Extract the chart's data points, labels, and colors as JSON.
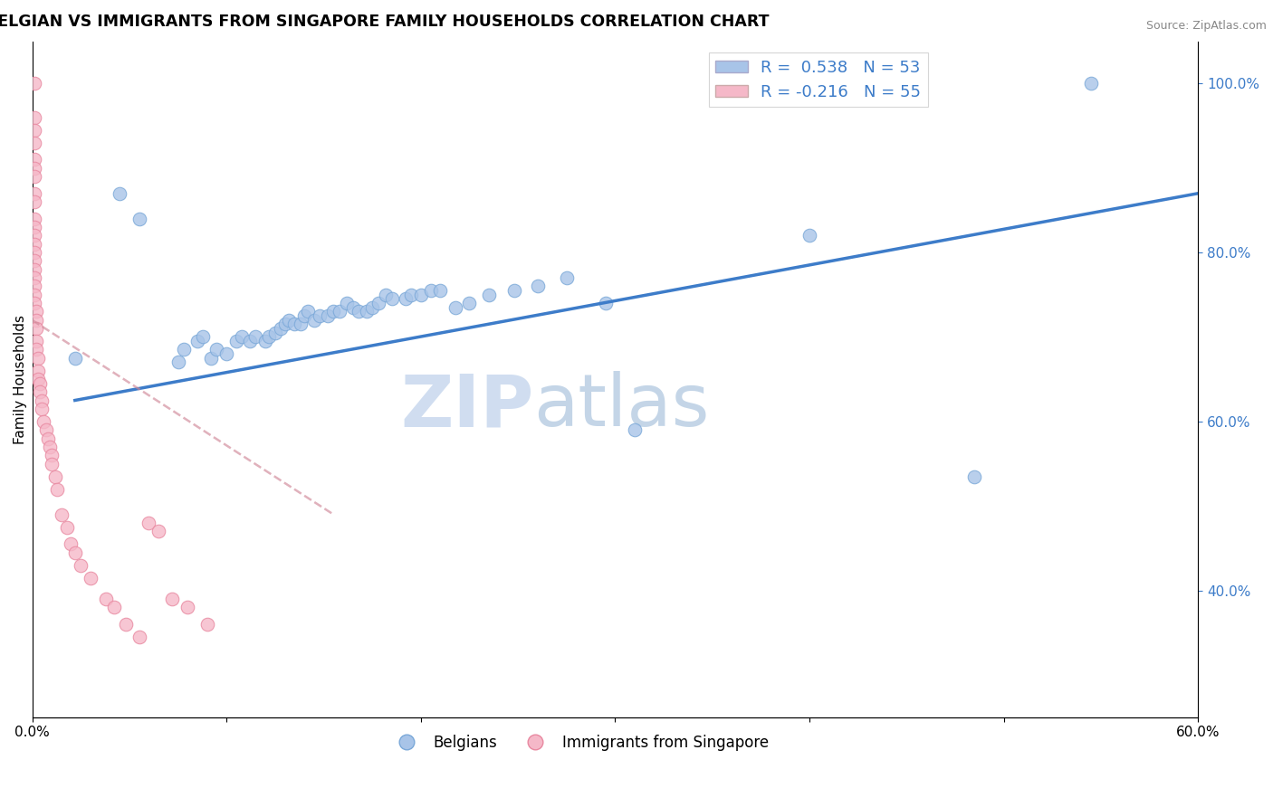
{
  "title": "BELGIAN VS IMMIGRANTS FROM SINGAPORE FAMILY HOUSEHOLDS CORRELATION CHART",
  "source": "Source: ZipAtlas.com",
  "ylabel": "Family Households",
  "xlim": [
    0.0,
    0.6
  ],
  "ylim": [
    0.25,
    1.05
  ],
  "xticks": [
    0.0,
    0.1,
    0.2,
    0.3,
    0.4,
    0.5,
    0.6
  ],
  "xticklabels": [
    "0.0%",
    "",
    "",
    "",
    "",
    "",
    "60.0%"
  ],
  "yticks_right": [
    0.4,
    0.6,
    0.8,
    1.0
  ],
  "yticklabels_right": [
    "40.0%",
    "60.0%",
    "80.0%",
    "100.0%"
  ],
  "blue_color": "#a8c4e8",
  "blue_edge": "#7aa8d8",
  "pink_color": "#f5b8c8",
  "pink_edge": "#e888a0",
  "trend_blue": "#3d7cc9",
  "trend_pink": "#d08898",
  "R_blue": 0.538,
  "N_blue": 53,
  "R_pink": -0.216,
  "N_pink": 55,
  "legend_label_blue": "Belgians",
  "legend_label_pink": "Immigrants from Singapore",
  "watermark": "ZIPatlas",
  "background_color": "#ffffff",
  "grid_color": "#cccccc",
  "title_fontsize": 12.5,
  "axis_fontsize": 11,
  "blue_scatter_x": [
    0.022,
    0.045,
    0.055,
    0.075,
    0.078,
    0.085,
    0.088,
    0.092,
    0.095,
    0.1,
    0.105,
    0.108,
    0.112,
    0.115,
    0.12,
    0.122,
    0.125,
    0.128,
    0.13,
    0.132,
    0.135,
    0.138,
    0.14,
    0.142,
    0.145,
    0.148,
    0.152,
    0.155,
    0.158,
    0.162,
    0.165,
    0.168,
    0.172,
    0.175,
    0.178,
    0.182,
    0.185,
    0.192,
    0.195,
    0.2,
    0.205,
    0.21,
    0.218,
    0.225,
    0.235,
    0.248,
    0.26,
    0.275,
    0.295,
    0.31,
    0.4,
    0.485,
    0.545
  ],
  "blue_scatter_y": [
    0.675,
    0.87,
    0.84,
    0.67,
    0.685,
    0.695,
    0.7,
    0.675,
    0.685,
    0.68,
    0.695,
    0.7,
    0.695,
    0.7,
    0.695,
    0.7,
    0.705,
    0.71,
    0.715,
    0.72,
    0.715,
    0.715,
    0.725,
    0.73,
    0.72,
    0.725,
    0.725,
    0.73,
    0.73,
    0.74,
    0.735,
    0.73,
    0.73,
    0.735,
    0.74,
    0.75,
    0.745,
    0.745,
    0.75,
    0.75,
    0.755,
    0.755,
    0.735,
    0.74,
    0.75,
    0.755,
    0.76,
    0.77,
    0.74,
    0.59,
    0.82,
    0.535,
    1.0
  ],
  "pink_scatter_x": [
    0.001,
    0.001,
    0.001,
    0.001,
    0.001,
    0.001,
    0.001,
    0.001,
    0.001,
    0.001,
    0.001,
    0.001,
    0.001,
    0.001,
    0.001,
    0.001,
    0.001,
    0.001,
    0.001,
    0.001,
    0.002,
    0.002,
    0.002,
    0.002,
    0.002,
    0.003,
    0.003,
    0.003,
    0.004,
    0.004,
    0.005,
    0.005,
    0.006,
    0.007,
    0.008,
    0.009,
    0.01,
    0.01,
    0.012,
    0.013,
    0.015,
    0.018,
    0.02,
    0.022,
    0.025,
    0.03,
    0.038,
    0.042,
    0.048,
    0.055,
    0.06,
    0.065,
    0.072,
    0.08,
    0.09
  ],
  "pink_scatter_y": [
    1.0,
    0.96,
    0.945,
    0.93,
    0.91,
    0.9,
    0.89,
    0.87,
    0.86,
    0.84,
    0.83,
    0.82,
    0.81,
    0.8,
    0.79,
    0.78,
    0.77,
    0.76,
    0.75,
    0.74,
    0.73,
    0.72,
    0.71,
    0.695,
    0.685,
    0.675,
    0.66,
    0.65,
    0.645,
    0.635,
    0.625,
    0.615,
    0.6,
    0.59,
    0.58,
    0.57,
    0.56,
    0.55,
    0.535,
    0.52,
    0.49,
    0.475,
    0.455,
    0.445,
    0.43,
    0.415,
    0.39,
    0.38,
    0.36,
    0.345,
    0.48,
    0.47,
    0.39,
    0.38,
    0.36
  ],
  "blue_trendline_x": [
    0.022,
    0.6
  ],
  "blue_trendline_y": [
    0.625,
    0.87
  ],
  "pink_trendline_x": [
    0.0,
    0.155
  ],
  "pink_trendline_y": [
    0.72,
    0.49
  ]
}
